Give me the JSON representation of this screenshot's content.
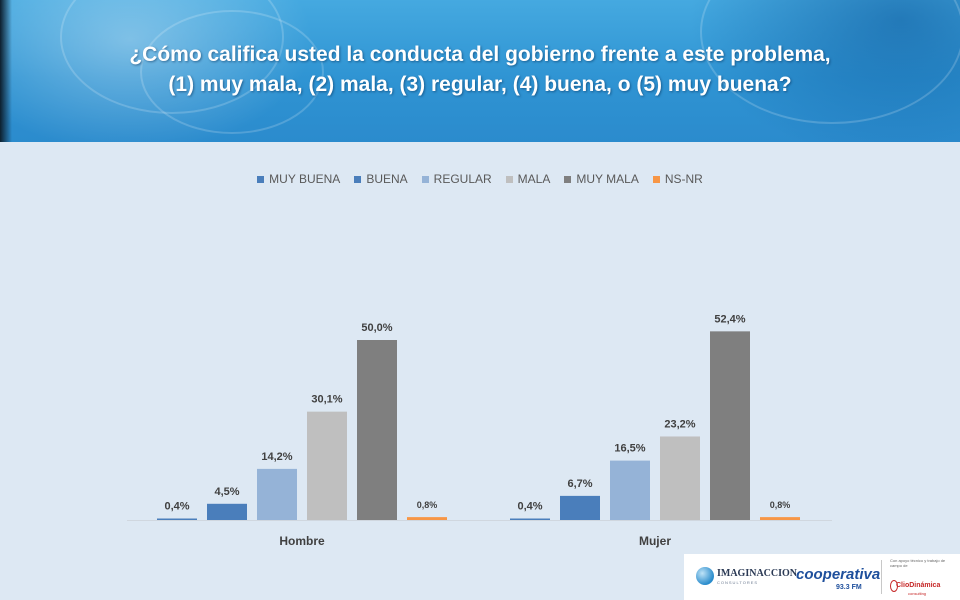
{
  "header": {
    "title_line1": "¿Cómo califica usted la conducta del gobierno frente a este problema,",
    "title_line2": "(1) muy mala, (2) mala, (3) regular, (4) buena, o (5) muy buena?"
  },
  "chart_data": {
    "type": "bar",
    "title": "¿Cómo califica usted la conducta del gobierno frente a este problema, (1) muy mala, (2) mala, (3) regular, (4) buena, o (5) muy buena?",
    "categories": [
      "Hombre",
      "Mujer"
    ],
    "series": [
      {
        "name": "MUY  BUENA",
        "color": "#4a7ebb",
        "values": [
          0.4,
          0.4
        ],
        "labels": [
          "0,4%",
          "0,4%"
        ]
      },
      {
        "name": "BUENA",
        "color": "#4a7ebb",
        "values": [
          4.5,
          6.7
        ],
        "labels": [
          "4,5%",
          "6,7%"
        ]
      },
      {
        "name": "REGULAR",
        "color": "#95b3d7",
        "values": [
          14.2,
          16.5
        ],
        "labels": [
          "14,2%",
          "16,5%"
        ]
      },
      {
        "name": "MALA",
        "color": "#bfbfbf",
        "values": [
          30.1,
          23.2
        ],
        "labels": [
          "30,1%",
          "23,2%"
        ]
      },
      {
        "name": "MUY MALA",
        "color": "#7f7f7f",
        "values": [
          50.0,
          52.4
        ],
        "labels": [
          "50,0%",
          "52,4%"
        ]
      },
      {
        "name": "NS-NR",
        "color": "#f79646",
        "values": [
          0.8,
          0.8
        ],
        "labels": [
          "0,8%",
          "0,8%"
        ]
      }
    ],
    "ylim": [
      0,
      55
    ],
    "grid": false,
    "legend_position": "top"
  },
  "footer": {
    "imaginaccion": "IMAGINACCION",
    "imaginaccion_sub": "CONSULTORES",
    "cooperativa": "cooperativa",
    "cooperativa_fm": "93.3 FM",
    "clio_support": "Con apoyo técnico y trabajo de campo de",
    "clio_name": "ClioDinámica",
    "clio_sub": "consulting"
  }
}
